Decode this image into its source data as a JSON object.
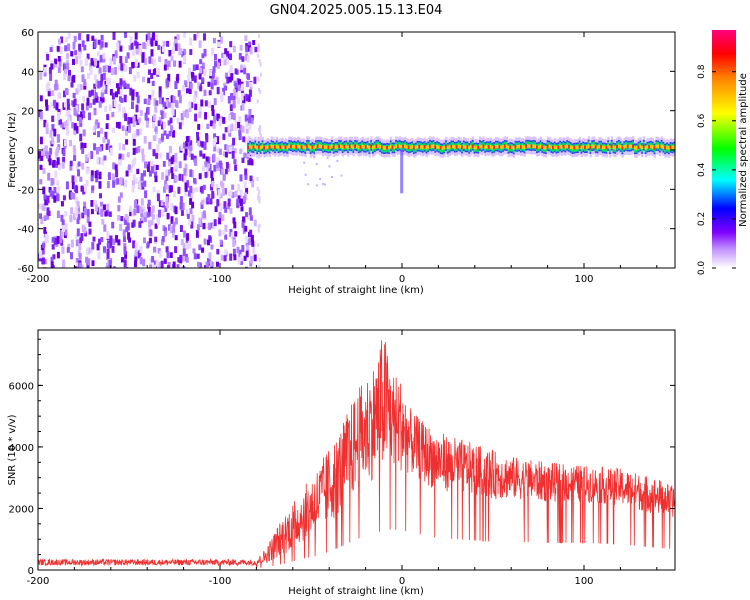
{
  "title": "GN04.2025.005.15.13.E04",
  "chart_data": [
    {
      "type": "heatmap",
      "xlabel": "Height of straight line (km)",
      "ylabel": "Frequency (Hz)",
      "xlim": [
        -200,
        150
      ],
      "ylim": [
        -60,
        60
      ],
      "xticks": [
        -200,
        -100,
        0,
        100
      ],
      "yticks": [
        60,
        40,
        20,
        0,
        -20,
        -40,
        -60
      ],
      "colorbar": {
        "label": "Normalized spectral amplitude",
        "ticks": [
          "0.0",
          "0.2",
          "0.4",
          "0.6",
          "0.8"
        ],
        "tick_values": [
          0.0,
          0.2,
          0.4,
          0.6,
          0.8
        ],
        "range": [
          0,
          0.97
        ],
        "colors": [
          "#ffffff",
          "#8000ff",
          "#0000ff",
          "#00ffff",
          "#00ff00",
          "#ffff00",
          "#ff8000",
          "#ff0000",
          "#ff0080"
        ]
      },
      "regions": [
        {
          "x": [
            -200,
            -85
          ],
          "y": [
            -60,
            60
          ],
          "level": 0.1,
          "description_value": "noise"
        },
        {
          "x": [
            -85,
            150
          ],
          "y": [
            -2,
            5
          ],
          "level": 0.95,
          "center": 1.5
        },
        {
          "x": [
            -1,
            0
          ],
          "y": [
            -22,
            0
          ],
          "level": 0.3
        }
      ]
    },
    {
      "type": "line",
      "xlabel": "Height of straight line (km)",
      "ylabel": "SNR (10 * v/v)",
      "xlim": [
        -200,
        150
      ],
      "ylim": [
        0,
        7800
      ],
      "xticks": [
        -200,
        -100,
        0,
        100
      ],
      "yticks": [
        0,
        2000,
        4000,
        6000
      ],
      "color": "#f03030",
      "envelope": {
        "x": [
          -200,
          -150,
          -100,
          -80,
          -75,
          -65,
          -55,
          -45,
          -35,
          -25,
          -15,
          -10,
          -5,
          0,
          5,
          10,
          15,
          20,
          30,
          40,
          50,
          60,
          80,
          100,
          120,
          140,
          150
        ],
        "low": [
          150,
          150,
          150,
          150,
          200,
          500,
          900,
          1200,
          1800,
          2500,
          3000,
          3200,
          3300,
          3200,
          3100,
          2900,
          2700,
          2600,
          2500,
          2400,
          2300,
          2300,
          2200,
          2200,
          2100,
          1800,
          1700
        ],
        "high": [
          350,
          350,
          350,
          350,
          700,
          1800,
          2600,
          3500,
          4500,
          5800,
          6800,
          7800,
          6500,
          6200,
          5200,
          4900,
          4700,
          4500,
          4300,
          4100,
          3900,
          3700,
          3500,
          3400,
          3300,
          3000,
          2700
        ]
      }
    }
  ]
}
